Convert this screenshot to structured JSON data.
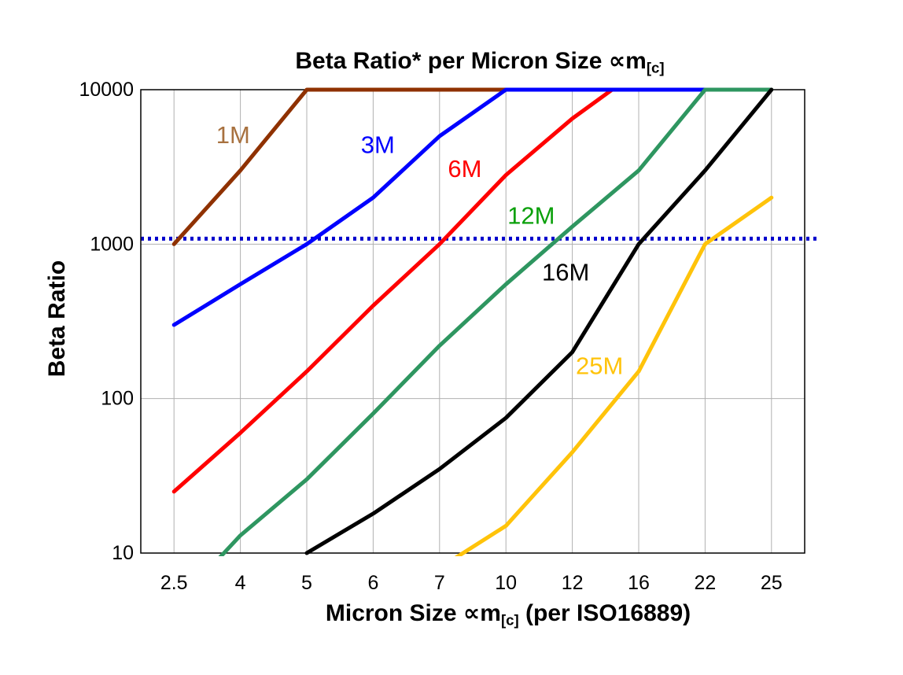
{
  "chart_data": {
    "type": "line",
    "title_pre": "Beta Ratio* per Micron Size ∝m",
    "title_sub": "[c]",
    "ylabel": "Beta Ratio",
    "xlabel_pre": "Micron Size ∝m",
    "xlabel_sub": "[c]",
    "xlabel_post": " (per ISO16889)",
    "x_axis": {
      "categories": [
        "2.5",
        "4",
        "5",
        "6",
        "7",
        "10",
        "12",
        "16",
        "22",
        "25"
      ]
    },
    "y_axis": {
      "scale": "log",
      "min": 10,
      "max": 10000,
      "ticks": [
        10,
        100,
        1000,
        10000
      ]
    },
    "grid": true,
    "grid_color": "#b0b0b0",
    "frame_color": "#000000",
    "reference_line": {
      "value": 1000,
      "style": "dotted",
      "color": "#0000cc"
    },
    "series": [
      {
        "name": "1M",
        "color": "#8f3100",
        "label_color": "#a8713f",
        "z": 1,
        "label_pos": [
          0.139,
          0.098
        ],
        "points": [
          [
            0,
            1000
          ],
          [
            1,
            3000
          ],
          [
            2,
            10000
          ],
          [
            5,
            10000
          ]
        ]
      },
      {
        "name": "3M",
        "color": "#0000ff",
        "label_color": "#0000ff",
        "z": 3,
        "label_pos": [
          0.357,
          0.119
        ],
        "points": [
          [
            0,
            300
          ],
          [
            1,
            550
          ],
          [
            2,
            1000
          ],
          [
            3,
            2000
          ],
          [
            4,
            5000
          ],
          [
            5,
            10000
          ],
          [
            8,
            10000
          ]
        ]
      },
      {
        "name": "6M",
        "color": "#ff0000",
        "label_color": "#ff0000",
        "z": 2,
        "label_pos": [
          0.488,
          0.171
        ],
        "points": [
          [
            0,
            25
          ],
          [
            1,
            60
          ],
          [
            2,
            150
          ],
          [
            3,
            400
          ],
          [
            4,
            1000
          ],
          [
            5,
            2800
          ],
          [
            6,
            6500
          ],
          [
            6.6,
            10000
          ]
        ]
      },
      {
        "name": "12M",
        "color": "#2e9660",
        "label_color": "#0aa00a",
        "z": 4,
        "label_pos": [
          0.588,
          0.272
        ],
        "points": [
          [
            0,
            4.5
          ],
          [
            1,
            13
          ],
          [
            2,
            30
          ],
          [
            3,
            80
          ],
          [
            4,
            220
          ],
          [
            5,
            550
          ],
          [
            6,
            1300
          ],
          [
            7,
            3000
          ],
          [
            8,
            10000
          ],
          [
            9,
            10000
          ]
        ]
      },
      {
        "name": "16M",
        "color": "#000000",
        "label_color": "#000000",
        "z": 5,
        "label_pos": [
          0.64,
          0.394
        ],
        "points": [
          [
            2,
            10
          ],
          [
            3,
            18
          ],
          [
            4,
            35
          ],
          [
            5,
            75
          ],
          [
            6,
            200
          ],
          [
            7,
            1000
          ],
          [
            8,
            3000
          ],
          [
            9,
            10000
          ]
        ]
      },
      {
        "name": "25M",
        "color": "#ffc30a",
        "label_color": "#ffc30a",
        "z": 6,
        "label_pos": [
          0.691,
          0.596
        ],
        "points": [
          [
            4,
            8
          ],
          [
            5,
            15
          ],
          [
            6,
            45
          ],
          [
            7,
            150
          ],
          [
            8,
            1000
          ],
          [
            9,
            2000
          ]
        ]
      }
    ]
  }
}
